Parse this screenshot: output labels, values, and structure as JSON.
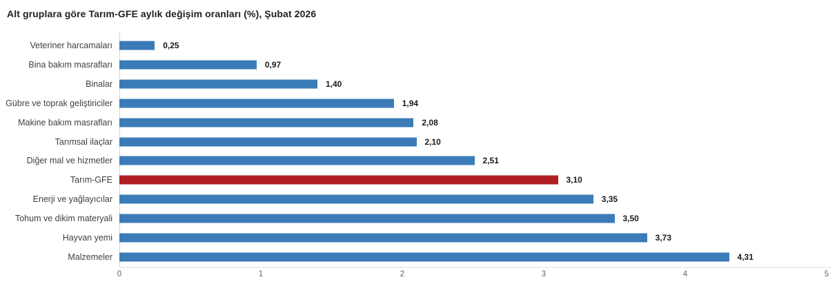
{
  "title": "Alt gruplara göre Tarım-GFE aylık değişim oranları (%), Şubat 2026",
  "colors": {
    "bar_default": "#3b7cb8",
    "bar_highlight": "#b01e24",
    "axis_line": "#d9d9d9",
    "baseline": "#efefef",
    "title_text": "#1f1f1f",
    "category_text": "#404040",
    "value_text": "#1a1a1a",
    "tick_text": "#666666"
  },
  "chart_data": {
    "type": "bar",
    "orientation": "horizontal",
    "title": "Alt gruplara göre Tarım-GFE aylık değişim oranları (%), Şubat 2026",
    "xlabel": "",
    "ylabel": "",
    "xlim": [
      0,
      5
    ],
    "x_ticks": [
      "0",
      "1",
      "2",
      "3",
      "4",
      "5"
    ],
    "grid": false,
    "legend": "none",
    "categories": [
      "Veteriner harcamaları",
      "Bina bakım masrafları",
      "Binalar",
      "Gübre ve toprak geliştiriciler",
      "Makine bakım masrafları",
      "Tarımsal ilaçlar",
      "Diğer mal ve hizmetler",
      "Tarım-GFE",
      "Enerji  ve yağlayıcılar",
      "Tohum ve dikim materyali",
      "Hayvan yemi",
      "Malzemeler"
    ],
    "values": [
      0.25,
      0.97,
      1.4,
      1.94,
      2.08,
      2.1,
      2.51,
      3.1,
      3.35,
      3.5,
      3.73,
      4.31
    ],
    "value_labels": [
      "0,25",
      "0,97",
      "1,40",
      "1,94",
      "2,08",
      "2,10",
      "2,51",
      "3,10",
      "3,35",
      "3,50",
      "3,73",
      "4,31"
    ],
    "highlight_category": "Tarım-GFE",
    "highlight_index": 7
  }
}
